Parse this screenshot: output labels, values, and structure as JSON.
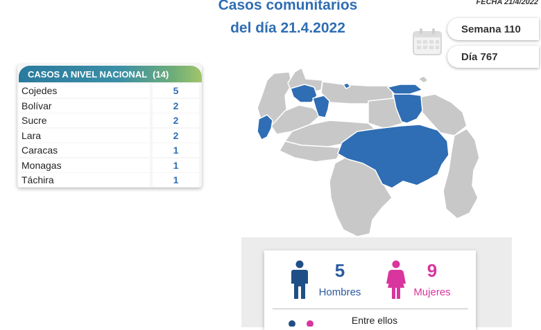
{
  "header": {
    "title_line1": "Casos comunitarios",
    "title_line2": "del día 21.4.2022",
    "fecha": "FECHA 21/4/2022",
    "semana": "Semana 110",
    "dia": "Día 767"
  },
  "table": {
    "header_label": "CASOS A NIVEL NACIONAL",
    "header_total": "(14)",
    "rows": [
      {
        "state": "Cojedes",
        "count": "5"
      },
      {
        "state": "Bolívar",
        "count": "2"
      },
      {
        "state": "Sucre",
        "count": "2"
      },
      {
        "state": "Lara",
        "count": "2"
      },
      {
        "state": "Caracas",
        "count": "1"
      },
      {
        "state": "Monagas",
        "count": "1"
      },
      {
        "state": "Táchira",
        "count": "1"
      }
    ]
  },
  "stats": {
    "men_count": "5",
    "men_label": "Hombres",
    "women_count": "9",
    "women_label": "Mujeres",
    "entre_label": "Entre ellos"
  },
  "colors": {
    "title": "#2f6db4",
    "highlight_state": "#2f6db4",
    "map_gray": "#c8c8c8",
    "men": "#2a5aa0",
    "women": "#d9359e"
  },
  "icons": {
    "calendar": "calendar-icon",
    "man": "man-icon",
    "woman": "woman-icon"
  }
}
